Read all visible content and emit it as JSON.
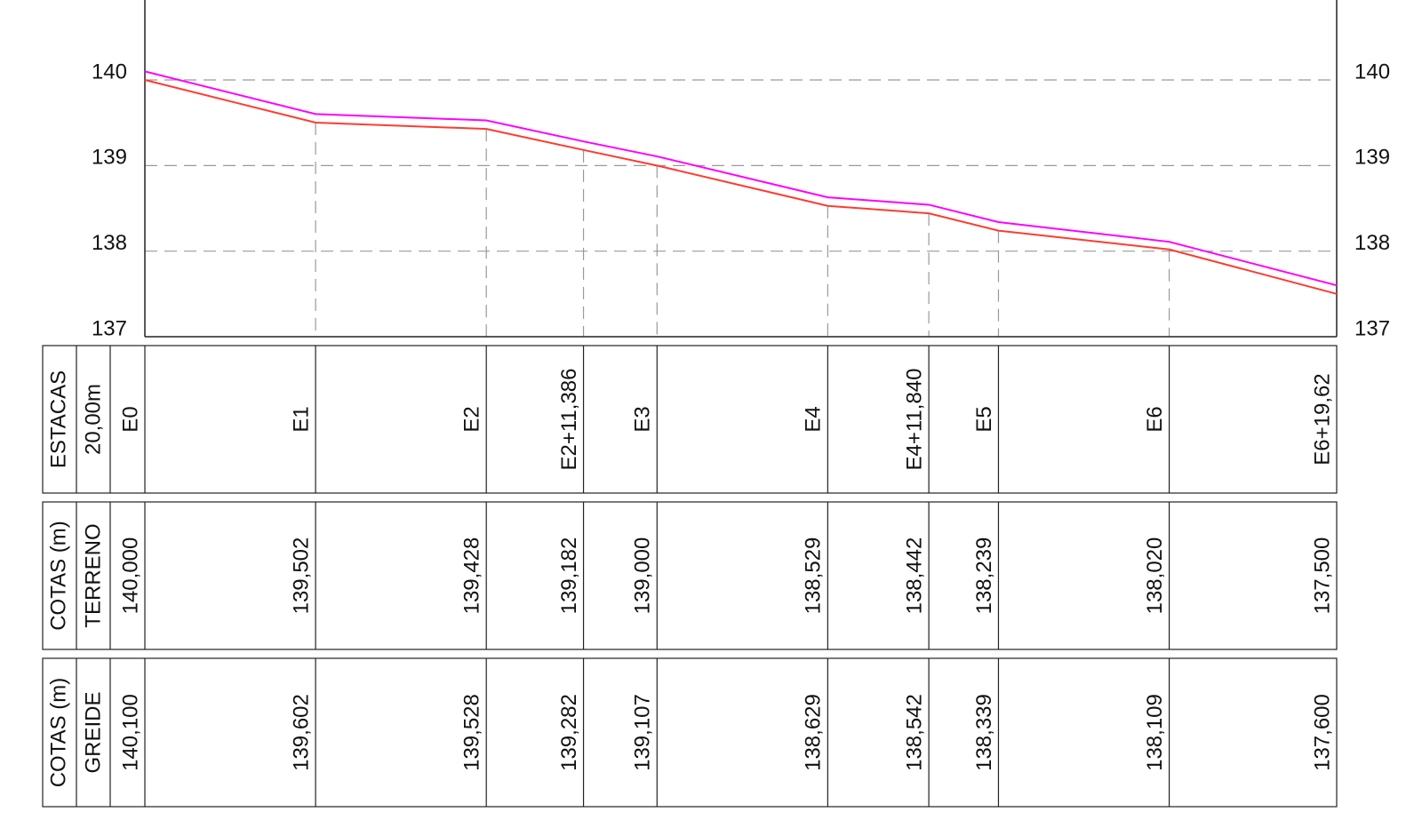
{
  "chart_data": {
    "type": "line",
    "categories": [
      "E0",
      "E1",
      "E2",
      "E2+11,386",
      "E3",
      "E4",
      "E4+11,840",
      "E5",
      "E6",
      "E6+19,62"
    ],
    "x": [
      0,
      20,
      40,
      51.386,
      60,
      80,
      91.84,
      100,
      120,
      139.62
    ],
    "xlim": [
      0,
      139.62
    ],
    "ylim": [
      137,
      141
    ],
    "yticks": [
      137,
      138,
      139,
      140
    ],
    "grid": true,
    "station_header": [
      "ESTACAS",
      "20,00m"
    ],
    "series": [
      {
        "header": "COTAS (m)",
        "name": "TERRENO",
        "color": "#ff3b30",
        "values": [
          140.0,
          139.502,
          139.428,
          139.182,
          139.0,
          138.529,
          138.442,
          138.239,
          138.02,
          137.5
        ],
        "value_labels": [
          "140,000",
          "139,502",
          "139,428",
          "139,182",
          "139,000",
          "138,529",
          "138,442",
          "138,239",
          "138,020",
          "137,500"
        ]
      },
      {
        "header": "COTAS (m)",
        "name": "GREIDE",
        "color": "#ff00ff",
        "values": [
          140.1,
          139.602,
          139.528,
          139.282,
          139.107,
          138.629,
          138.542,
          138.339,
          138.109,
          137.6
        ],
        "value_labels": [
          "140,100",
          "139,602",
          "139,528",
          "139,282",
          "139,107",
          "138,629",
          "138,542",
          "138,339",
          "138,109",
          "137,600"
        ]
      }
    ]
  }
}
